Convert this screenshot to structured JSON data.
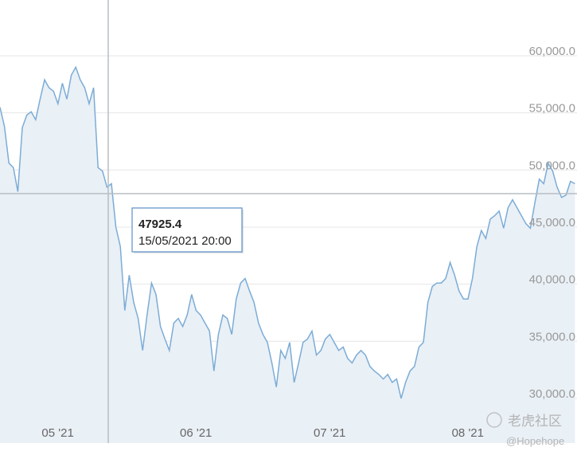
{
  "chart_data": {
    "type": "area",
    "categories": [
      null,
      null,
      null,
      null,
      null,
      null,
      null,
      null,
      null,
      "05 '21",
      null,
      null,
      null,
      null,
      null,
      null,
      null,
      null,
      null,
      null,
      null,
      null,
      null,
      null,
      null,
      null,
      null,
      null,
      null,
      null,
      null,
      null,
      null,
      null,
      null,
      null,
      null,
      null,
      null,
      null,
      "06 '21",
      null,
      null,
      null,
      null,
      null,
      null,
      null,
      null,
      null,
      null,
      null,
      null,
      null,
      null,
      null,
      null,
      null,
      null,
      null,
      null,
      null,
      null,
      null,
      null,
      null,
      null,
      null,
      null,
      null,
      "07 '21",
      null,
      null,
      null,
      null,
      null,
      null,
      null,
      null,
      null,
      null,
      null,
      null,
      null,
      null,
      null,
      null,
      null,
      null,
      null,
      null,
      null,
      null,
      null,
      null,
      null,
      null,
      null,
      null,
      null,
      null,
      "08 '21",
      null,
      null,
      null,
      null,
      null,
      null,
      null,
      null,
      null,
      null,
      null,
      null,
      null,
      null,
      null,
      null,
      null,
      null,
      null,
      null,
      null,
      null,
      null,
      null,
      null,
      null,
      null,
      null
    ],
    "values": [
      55500,
      53800,
      50600,
      50200,
      48100,
      53700,
      54800,
      55100,
      54400,
      56200,
      57900,
      57200,
      56900,
      55800,
      57600,
      56200,
      58300,
      59000,
      57900,
      57200,
      55800,
      57200,
      50200,
      49900,
      48500,
      48800,
      45000,
      43300,
      37700,
      40800,
      38400,
      37000,
      34200,
      37300,
      40100,
      39100,
      36300,
      35200,
      34200,
      36600,
      37000,
      36300,
      37300,
      39100,
      37700,
      37300,
      36600,
      35900,
      32400,
      35600,
      37300,
      37000,
      35600,
      38700,
      40100,
      40500,
      39400,
      38400,
      36600,
      35600,
      34900,
      33100,
      31000,
      34200,
      33500,
      34900,
      31400,
      33100,
      34900,
      35200,
      35900,
      33800,
      34200,
      35200,
      35600,
      34900,
      34200,
      34500,
      33500,
      33100,
      33800,
      34200,
      33800,
      32800,
      32400,
      32100,
      31700,
      32100,
      31400,
      31700,
      30000,
      31400,
      32400,
      32800,
      34500,
      34900,
      38400,
      39800,
      40100,
      40100,
      40500,
      41900,
      40800,
      39400,
      38700,
      38700,
      40500,
      43300,
      44700,
      44000,
      45700,
      46000,
      46400,
      44900,
      46700,
      47400,
      46700,
      46000,
      45300,
      44900,
      47100,
      49200,
      48800,
      50600,
      49900,
      48500,
      47600,
      47800,
      49000,
      48800
    ],
    "color": "#7cacd6",
    "fill_color": "#e9f0f6",
    "ylim": [
      26000,
      65000
    ],
    "yticks": [
      {
        "value": 30000,
        "label": "30,000.0"
      },
      {
        "value": 35000,
        "label": "35,000.0"
      },
      {
        "value": 40000,
        "label": "40,000.0"
      },
      {
        "value": 45000,
        "label": "45,000.0"
      },
      {
        "value": 50000,
        "label": "50,000.0"
      },
      {
        "value": 55000,
        "label": "55,000.0"
      },
      {
        "value": 60000,
        "label": "60,000.0"
      }
    ],
    "grid": true,
    "tooltip": {
      "value": 47925.4,
      "date": "15/05/2021 20:00"
    },
    "watermark": {
      "brand": "老虎社区",
      "user": "@Hopehope"
    }
  }
}
